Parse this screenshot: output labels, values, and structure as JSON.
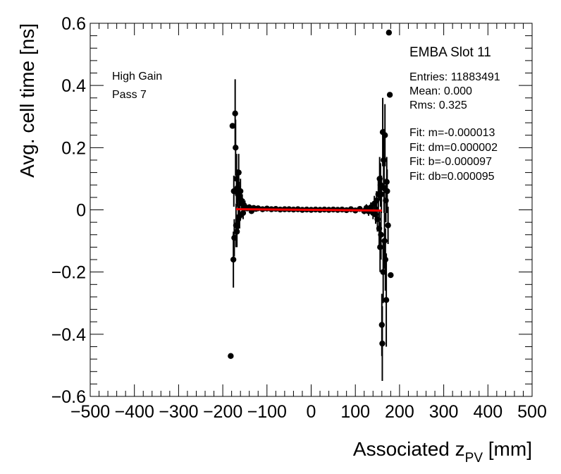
{
  "chart_data": {
    "type": "scatter",
    "xlabel_main": "Associated z",
    "xlabel_sub": "PV",
    "xlabel_unit": " [mm]",
    "ylabel": "Avg. cell time [ns]",
    "xlim": [
      -500,
      500
    ],
    "ylim": [
      -0.6,
      0.6
    ],
    "x_ticks": [
      -500,
      -400,
      -300,
      -200,
      -100,
      0,
      100,
      200,
      300,
      400,
      500
    ],
    "x_tick_labels": [
      "−500",
      "−400",
      "−300",
      "−200",
      "−100",
      "0",
      "100",
      "200",
      "300",
      "400",
      "500"
    ],
    "y_ticks": [
      -0.6,
      -0.4,
      -0.2,
      0,
      0.2,
      0.4,
      0.6
    ],
    "y_tick_labels": [
      "−0.6",
      "−0.4",
      "−0.2",
      "0",
      "0.2",
      "0.4",
      "0.6"
    ],
    "grid": false,
    "labels": [
      "High Gain",
      "Pass 7"
    ],
    "stats_title": "EMBA Slot 11",
    "stats_lines": [
      "Entries: 11883491",
      "Mean: 0.000",
      "Rms: 0.325"
    ],
    "fit_lines": [
      "Fit: m=-0.000013",
      "Fit: dm=0.000002",
      "Fit: b=-0.000097",
      "Fit: db=0.000095"
    ],
    "fit": {
      "x_range": [
        -170,
        160
      ],
      "m": -1.3e-05,
      "b": -9.7e-05,
      "color": "#ff0000"
    },
    "marker_color": "#000000",
    "points": [
      {
        "x": -182,
        "y": -0.47,
        "e": 0
      },
      {
        "x": -178,
        "y": 0.27,
        "e": 0
      },
      {
        "x": -176,
        "y": -0.16,
        "e": 0.09
      },
      {
        "x": -175,
        "y": 0.06,
        "e": 0.05
      },
      {
        "x": -174,
        "y": -0.09,
        "e": 0.06
      },
      {
        "x": -172,
        "y": 0.31,
        "e": 0.11
      },
      {
        "x": -171,
        "y": 0.2,
        "e": 0.09
      },
      {
        "x": -170,
        "y": -0.05,
        "e": 0.07
      },
      {
        "x": -169,
        "y": 0.1,
        "e": 0.08
      },
      {
        "x": -168,
        "y": -0.07,
        "e": 0.05
      },
      {
        "x": -167,
        "y": 0.07,
        "e": 0.06
      },
      {
        "x": -166,
        "y": 0.05,
        "e": 0.05
      },
      {
        "x": -165,
        "y": -0.03,
        "e": 0.04
      },
      {
        "x": -164,
        "y": 0.12,
        "e": 0.06
      },
      {
        "x": -163,
        "y": 0.04,
        "e": 0.05
      },
      {
        "x": -162,
        "y": -0.02,
        "e": 0.04
      },
      {
        "x": -160,
        "y": 0.06,
        "e": 0.04
      },
      {
        "x": -158,
        "y": 0.03,
        "e": 0.03
      },
      {
        "x": -156,
        "y": 0.02,
        "e": 0.03
      },
      {
        "x": -154,
        "y": -0.01,
        "e": 0.02
      },
      {
        "x": -152,
        "y": 0.015,
        "e": 0.02
      },
      {
        "x": -150,
        "y": 0.01,
        "e": 0.02
      },
      {
        "x": -145,
        "y": 0.005,
        "e": 0.01
      },
      {
        "x": -140,
        "y": 0.008,
        "e": 0.01
      },
      {
        "x": -135,
        "y": -0.004,
        "e": 0.008
      },
      {
        "x": -130,
        "y": 0.006,
        "e": 0.008
      },
      {
        "x": -125,
        "y": 0.003,
        "e": 0.006
      },
      {
        "x": -120,
        "y": 0.005,
        "e": 0.006
      },
      {
        "x": -110,
        "y": 0.002,
        "e": 0.005
      },
      {
        "x": -100,
        "y": 0.004,
        "e": 0.005
      },
      {
        "x": -90,
        "y": 0.002,
        "e": 0.004
      },
      {
        "x": -80,
        "y": 0.003,
        "e": 0.004
      },
      {
        "x": -70,
        "y": 0.001,
        "e": 0.004
      },
      {
        "x": -60,
        "y": 0.002,
        "e": 0.004
      },
      {
        "x": -50,
        "y": 0.002,
        "e": 0.004
      },
      {
        "x": -40,
        "y": 0.001,
        "e": 0.004
      },
      {
        "x": -30,
        "y": 0.002,
        "e": 0.004
      },
      {
        "x": -20,
        "y": 0.0,
        "e": 0.004
      },
      {
        "x": -10,
        "y": 0.001,
        "e": 0.004
      },
      {
        "x": 0,
        "y": 0.0,
        "e": 0.004
      },
      {
        "x": 10,
        "y": 0.001,
        "e": 0.004
      },
      {
        "x": 20,
        "y": 0.0,
        "e": 0.004
      },
      {
        "x": 30,
        "y": 0.001,
        "e": 0.004
      },
      {
        "x": 40,
        "y": 0.0,
        "e": 0.004
      },
      {
        "x": 50,
        "y": 0.001,
        "e": 0.004
      },
      {
        "x": 60,
        "y": 0.0,
        "e": 0.004
      },
      {
        "x": 70,
        "y": 0.001,
        "e": 0.005
      },
      {
        "x": 80,
        "y": -0.001,
        "e": 0.005
      },
      {
        "x": 90,
        "y": 0.002,
        "e": 0.006
      },
      {
        "x": 100,
        "y": -0.002,
        "e": 0.007
      },
      {
        "x": 110,
        "y": 0.003,
        "e": 0.008
      },
      {
        "x": 120,
        "y": -0.004,
        "e": 0.01
      },
      {
        "x": 125,
        "y": 0.006,
        "e": 0.012
      },
      {
        "x": 130,
        "y": -0.005,
        "e": 0.014
      },
      {
        "x": 135,
        "y": 0.008,
        "e": 0.016
      },
      {
        "x": 140,
        "y": -0.01,
        "e": 0.02
      },
      {
        "x": 143,
        "y": 0.02,
        "e": 0.025
      },
      {
        "x": 146,
        "y": -0.015,
        "e": 0.03
      },
      {
        "x": 148,
        "y": 0.03,
        "e": 0.03
      },
      {
        "x": 150,
        "y": -0.03,
        "e": 0.04
      },
      {
        "x": 152,
        "y": 0.05,
        "e": 0.05
      },
      {
        "x": 154,
        "y": -0.06,
        "e": 0.06
      },
      {
        "x": 155,
        "y": 0.1,
        "e": 0.07
      },
      {
        "x": 156,
        "y": -0.12,
        "e": 0.08
      },
      {
        "x": 157,
        "y": 0.08,
        "e": 0.07
      },
      {
        "x": 158,
        "y": -0.08,
        "e": 0.08
      },
      {
        "x": 159,
        "y": 0.05,
        "e": 0.06
      },
      {
        "x": 160,
        "y": -0.37,
        "e": 0.1
      },
      {
        "x": 161,
        "y": -0.43,
        "e": 0.12
      },
      {
        "x": 162,
        "y": 0.25,
        "e": 0.11
      },
      {
        "x": 163,
        "y": -0.2,
        "e": 0.1
      },
      {
        "x": 164,
        "y": 0.16,
        "e": 0.1
      },
      {
        "x": 165,
        "y": 0.07,
        "e": 0.08
      },
      {
        "x": 166,
        "y": -0.1,
        "e": 0.09
      },
      {
        "x": 167,
        "y": 0.24,
        "e": 0.1
      },
      {
        "x": 168,
        "y": -0.16,
        "e": 0.1
      },
      {
        "x": 169,
        "y": 0.03,
        "e": 0.07
      },
      {
        "x": 170,
        "y": -0.29,
        "e": 0.15
      },
      {
        "x": 171,
        "y": 0.09,
        "e": 0.08
      },
      {
        "x": 172,
        "y": 0.06,
        "e": 0.07
      },
      {
        "x": 174,
        "y": -0.05,
        "e": 0.06
      },
      {
        "x": 176,
        "y": 0.57,
        "e": 0
      },
      {
        "x": 178,
        "y": 0.37,
        "e": 0
      },
      {
        "x": 180,
        "y": -0.21,
        "e": 0
      }
    ]
  }
}
